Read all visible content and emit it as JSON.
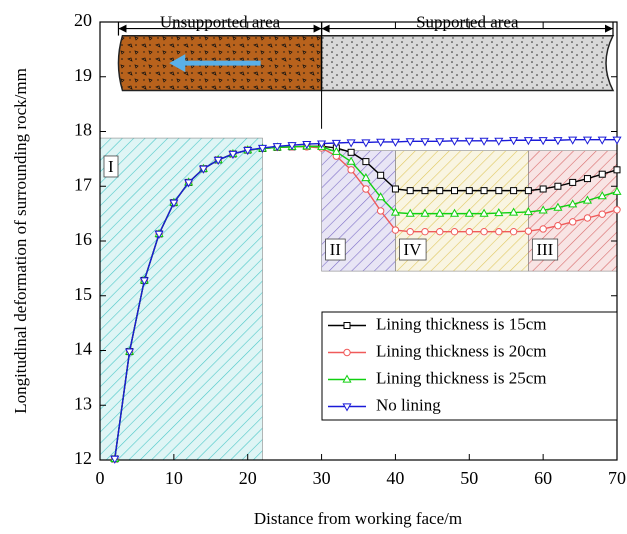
{
  "chart_data": {
    "type": "line",
    "xlabel": "Distance from working face/m",
    "ylabel": "Longitudinal deformation of surrounding rock/mm",
    "xlim": [
      0,
      70
    ],
    "xticks": [
      0,
      10,
      20,
      30,
      40,
      50,
      60,
      70
    ],
    "ylim": [
      12,
      20
    ],
    "yticks": [
      12,
      13,
      14,
      15,
      16,
      17,
      18,
      19,
      20
    ],
    "legend": "lower right",
    "x": [
      2,
      4,
      6,
      8,
      10,
      12,
      14,
      16,
      18,
      20,
      22,
      24,
      26,
      28,
      30,
      32,
      34,
      36,
      38,
      40,
      42,
      44,
      46,
      48,
      50,
      52,
      54,
      56,
      58,
      60,
      62,
      64,
      66,
      68,
      70
    ],
    "series": [
      {
        "name": "Lining thickness is 15cm",
        "color": "#000000",
        "marker": "square",
        "values": [
          12.02,
          13.98,
          15.28,
          16.13,
          16.7,
          17.07,
          17.32,
          17.48,
          17.59,
          17.66,
          17.69,
          17.71,
          17.72,
          17.73,
          17.73,
          17.7,
          17.62,
          17.45,
          17.2,
          16.95,
          16.92,
          16.92,
          16.92,
          16.92,
          16.92,
          16.92,
          16.92,
          16.92,
          16.92,
          16.95,
          17.0,
          17.07,
          17.14,
          17.22,
          17.3
        ]
      },
      {
        "name": "Lining thickness is 20cm",
        "color": "#f05a5a",
        "marker": "circle",
        "values": [
          12.02,
          13.98,
          15.28,
          16.13,
          16.7,
          17.07,
          17.32,
          17.48,
          17.59,
          17.66,
          17.69,
          17.71,
          17.72,
          17.72,
          17.7,
          17.55,
          17.3,
          16.95,
          16.55,
          16.2,
          16.17,
          16.17,
          16.17,
          16.17,
          16.17,
          16.17,
          16.17,
          16.17,
          16.18,
          16.22,
          16.28,
          16.35,
          16.42,
          16.49,
          16.57
        ]
      },
      {
        "name": "Lining thickness is 25cm",
        "color": "#10d010",
        "marker": "triangle-up",
        "values": [
          12.02,
          13.98,
          15.28,
          16.13,
          16.7,
          17.07,
          17.32,
          17.48,
          17.59,
          17.66,
          17.69,
          17.71,
          17.72,
          17.73,
          17.72,
          17.63,
          17.45,
          17.15,
          16.8,
          16.52,
          16.5,
          16.5,
          16.5,
          16.5,
          16.5,
          16.5,
          16.51,
          16.52,
          16.53,
          16.56,
          16.61,
          16.67,
          16.74,
          16.82,
          16.9
        ]
      },
      {
        "name": "No lining",
        "color": "#1a1ad8",
        "marker": "triangle-down",
        "values": [
          12.02,
          13.98,
          15.28,
          16.13,
          16.7,
          17.07,
          17.32,
          17.48,
          17.59,
          17.66,
          17.7,
          17.73,
          17.75,
          17.77,
          17.78,
          17.79,
          17.8,
          17.8,
          17.81,
          17.81,
          17.82,
          17.82,
          17.82,
          17.83,
          17.83,
          17.83,
          17.83,
          17.84,
          17.84,
          17.84,
          17.84,
          17.85,
          17.85,
          17.85,
          17.85
        ]
      }
    ],
    "regions": [
      {
        "label": "I",
        "xrange": [
          0,
          22
        ],
        "yrange": [
          12,
          17.88
        ],
        "color": "#4cc8c8"
      },
      {
        "label": "II",
        "xrange": [
          30,
          40
        ],
        "yrange": [
          15.45,
          17.65
        ],
        "color": "#7f70c8"
      },
      {
        "label": "IV",
        "xrange": [
          40,
          58
        ],
        "yrange": [
          15.45,
          17.65
        ],
        "color": "#e0c860"
      },
      {
        "label": "III",
        "xrange": [
          58,
          70
        ],
        "yrange": [
          15.45,
          17.65
        ],
        "color": "#d86a6a"
      }
    ],
    "spans": [
      {
        "label": "Unsupported area",
        "xrange": [
          2.5,
          30
        ]
      },
      {
        "label": "Supported area",
        "xrange": [
          30,
          70
        ]
      }
    ]
  }
}
